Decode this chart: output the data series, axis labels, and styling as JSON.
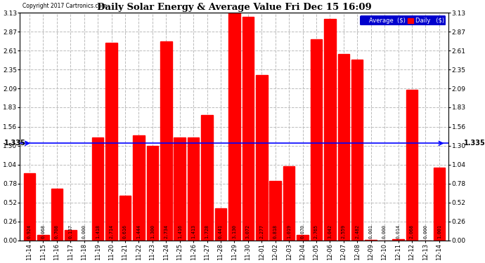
{
  "title": "Daily Solar Energy & Average Value Fri Dec 15 16:09",
  "copyright": "Copyright 2017 Cartronics.com",
  "average": 1.335,
  "bar_color": "#FF0000",
  "avg_line_color": "#0000FF",
  "background_color": "#FFFFFF",
  "grid_color": "#BBBBBB",
  "categories": [
    "11-14",
    "11-15",
    "11-16",
    "11-17",
    "11-18",
    "11-19",
    "11-20",
    "11-21",
    "11-22",
    "11-23",
    "11-24",
    "11-25",
    "11-26",
    "11-27",
    "11-28",
    "11-29",
    "11-30",
    "12-01",
    "12-02",
    "12-03",
    "12-04",
    "12-05",
    "12-06",
    "12-07",
    "12-08",
    "12-09",
    "12-10",
    "12-11",
    "12-12",
    "12-13",
    "12-14"
  ],
  "values": [
    0.924,
    0.068,
    0.708,
    0.137,
    0.0,
    1.418,
    2.714,
    0.616,
    1.444,
    1.3,
    2.734,
    1.416,
    1.413,
    1.728,
    0.441,
    3.13,
    3.072,
    2.277,
    0.818,
    1.019,
    0.07,
    2.765,
    3.042,
    2.559,
    2.482,
    0.001,
    0.0,
    0.014,
    2.068,
    0.0,
    1.001
  ],
  "ylim": [
    0.0,
    3.13
  ],
  "yticks": [
    0.0,
    0.26,
    0.52,
    0.78,
    1.04,
    1.3,
    1.56,
    1.83,
    2.09,
    2.35,
    2.61,
    2.87,
    3.13
  ],
  "legend_avg_color": "#0000CD",
  "legend_daily_color": "#FF0000",
  "avg_label": "Average  ($)",
  "daily_label": "Daily   ($)",
  "figsize": [
    6.9,
    3.75
  ],
  "dpi": 100
}
